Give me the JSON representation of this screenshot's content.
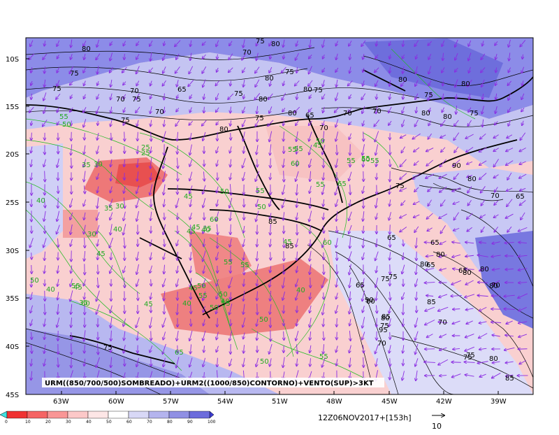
{
  "map": {
    "caption": "URM((850/700/500)SOMBREADO)+URM2((1000/850)CONTORNO)+VENTO(SUP)>3KT",
    "lat_ticks": [
      "10S",
      "15S",
      "20S",
      "25S",
      "30S",
      "35S",
      "40S",
      "45S"
    ],
    "lon_ticks": [
      "63W",
      "60W",
      "57W",
      "54W",
      "51W",
      "48W",
      "45W",
      "42W",
      "39W"
    ],
    "black_contour_labels": [
      "80",
      "70",
      "75",
      "80",
      "75",
      "80",
      "75",
      "70",
      "65",
      "75",
      "75",
      "80",
      "75",
      "80",
      "70",
      "75",
      "70",
      "75",
      "80",
      "75",
      "80",
      "70",
      "65",
      "70",
      "70",
      "80",
      "75",
      "80",
      "80",
      "90",
      "75",
      "80",
      "80",
      "75",
      "65",
      "85",
      "65",
      "85",
      "70",
      "65",
      "80",
      "80",
      "65",
      "75",
      "80",
      "85",
      "90",
      "85",
      "95",
      "75",
      "80",
      "85",
      "70",
      "75",
      "80",
      "75",
      "70",
      "65",
      "65",
      "80",
      "75",
      "80",
      "75",
      "70",
      "80"
    ],
    "green_contour_labels": [
      "55",
      "50",
      "25",
      "30",
      "35",
      "30",
      "40",
      "45",
      "35",
      "30",
      "40",
      "45",
      "35",
      "45",
      "40",
      "55",
      "40",
      "50",
      "60",
      "50",
      "45",
      "50",
      "60",
      "55",
      "55",
      "45",
      "45",
      "40",
      "60",
      "50",
      "55",
      "65",
      "55",
      "50",
      "55",
      "45",
      "35",
      "25",
      "40",
      "50",
      "55",
      "60",
      "45",
      "50",
      "55",
      "50",
      "40",
      "55",
      "55",
      "55",
      "65",
      "55",
      "60",
      "45",
      "55",
      "50"
    ]
  },
  "colorbar": {
    "ticks": [
      "0",
      "10",
      "20",
      "30",
      "40",
      "50",
      "60",
      "70",
      "80",
      "90",
      "100"
    ],
    "colors": [
      "#f03232",
      "#f56464",
      "#f99696",
      "#fcc8c8",
      "#fde6e6",
      "#ffffff",
      "#d8d8f6",
      "#b4b4ee",
      "#9090e4",
      "#6c6cdc"
    ]
  },
  "footer": {
    "timestamp": "12Z06NOV2017+[153h]",
    "vector_ref": "10"
  },
  "colors": {
    "pink": "#f4b4b4",
    "red": "#ee7070",
    "blue": "#8c8ce8",
    "lavender": "#c8c8f4",
    "wind": "#8a2be2",
    "green_contour": "#22bb22"
  }
}
